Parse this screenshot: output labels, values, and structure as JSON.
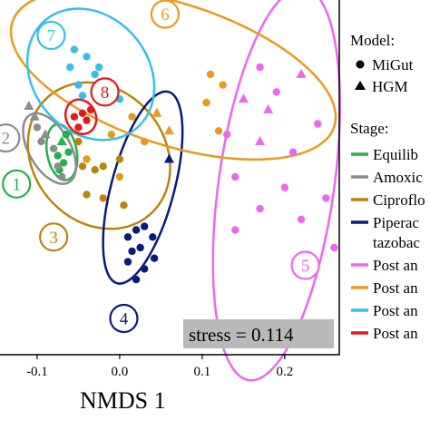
{
  "chart_data": {
    "type": "scatter",
    "xlabel": "NMDS 1",
    "ylabel": "",
    "x_ticks": [
      "-0.1",
      "0.0",
      "0.1",
      "0.2"
    ],
    "x_tick_values": [
      -0.1,
      0.0,
      0.1,
      0.2
    ],
    "xlim": [
      -0.145,
      0.265
    ],
    "ylim": [
      0,
      1
    ],
    "stress_label": "stress = 0.114",
    "legend": {
      "model_title": "Model:",
      "models": [
        {
          "marker": "circle",
          "label": "MiGut"
        },
        {
          "marker": "triangle",
          "label": "HGM"
        }
      ],
      "stage_title": "Stage:",
      "stages": [
        {
          "label": "Equilib",
          "color": "#22b14c"
        },
        {
          "label": "Amoxic",
          "color": "#8c8c8c"
        },
        {
          "label": "Ciproflo",
          "color": "#b8860b"
        },
        {
          "label": "Piperac",
          "label2": "tazobac",
          "color": "#0a1a7a"
        },
        {
          "label": "Post an",
          "color": "#ee66ee"
        },
        {
          "label": "Post an",
          "color": "#e89a1e"
        },
        {
          "label": "Post an",
          "color": "#38bfe8"
        },
        {
          "label": "Post an",
          "color": "#e31a1c"
        }
      ]
    },
    "ellipses": [
      {
        "id": "1",
        "color": "#22b14c",
        "center": [
          -0.07,
          0.57
        ],
        "rx": 0.018,
        "ry": 0.08,
        "angle": -10,
        "label_pos": [
          -0.125,
          0.48
        ]
      },
      {
        "id": "2",
        "color": "#8c8c8c",
        "center": [
          -0.085,
          0.58
        ],
        "rx": 0.025,
        "ry": 0.11,
        "angle": -30,
        "label_pos": [
          -0.138,
          0.61
        ]
      },
      {
        "id": "3",
        "color": "#b8860b",
        "center": [
          -0.025,
          0.56
        ],
        "rx": 0.08,
        "ry": 0.22,
        "angle": -40,
        "label_pos": [
          -0.08,
          0.33
        ]
      },
      {
        "id": "4",
        "color": "#0a1a7a",
        "center": [
          0.028,
          0.47
        ],
        "rx": 0.038,
        "ry": 0.28,
        "angle": 15,
        "label_pos": [
          0.005,
          0.1
        ]
      },
      {
        "id": "5",
        "color": "#ee66ee",
        "center": [
          0.19,
          0.48
        ],
        "rx": 0.07,
        "ry": 0.56,
        "angle": 8,
        "label_pos": [
          0.225,
          0.25
        ]
      },
      {
        "id": "6",
        "color": "#e89a1e",
        "center": [
          0.065,
          0.79
        ],
        "rx": 0.205,
        "ry": 0.2,
        "angle": 18,
        "label_pos": [
          0.055,
          0.96
        ]
      },
      {
        "id": "7",
        "color": "#38bfe8",
        "center": [
          -0.035,
          0.79
        ],
        "rx": 0.07,
        "ry": 0.2,
        "angle": -40,
        "label_pos": [
          -0.083,
          0.9
        ]
      },
      {
        "id": "8",
        "color": "#e31a1c",
        "center": [
          -0.047,
          0.67
        ],
        "rx": 0.018,
        "ry": 0.05,
        "angle": -25,
        "label_pos": [
          -0.018,
          0.74
        ]
      }
    ],
    "series": [
      {
        "name": "Equilib",
        "color": "#22b14c",
        "points": [
          {
            "x": -0.075,
            "y": 0.56,
            "m": "circle"
          },
          {
            "x": -0.068,
            "y": 0.54,
            "m": "circle"
          },
          {
            "x": -0.07,
            "y": 0.6,
            "m": "triangle"
          },
          {
            "x": -0.062,
            "y": 0.57,
            "m": "circle"
          },
          {
            "x": -0.073,
            "y": 0.52,
            "m": "circle"
          },
          {
            "x": -0.065,
            "y": 0.62,
            "m": "circle"
          }
        ]
      },
      {
        "name": "Amoxic",
        "color": "#8c8c8c",
        "points": [
          {
            "x": -0.11,
            "y": 0.7,
            "m": "triangle"
          },
          {
            "x": -0.1,
            "y": 0.64,
            "m": "circle"
          },
          {
            "x": -0.095,
            "y": 0.6,
            "m": "circle"
          },
          {
            "x": -0.09,
            "y": 0.62,
            "m": "triangle"
          },
          {
            "x": -0.08,
            "y": 0.58,
            "m": "circle"
          },
          {
            "x": -0.075,
            "y": 0.53,
            "m": "circle"
          },
          {
            "x": -0.07,
            "y": 0.5,
            "m": "circle"
          },
          {
            "x": -0.103,
            "y": 0.67,
            "m": "triangle"
          }
        ]
      },
      {
        "name": "Ciproflo",
        "color": "#b8860b",
        "points": [
          {
            "x": -0.045,
            "y": 0.53,
            "m": "circle"
          },
          {
            "x": -0.03,
            "y": 0.52,
            "m": "circle"
          },
          {
            "x": -0.02,
            "y": 0.53,
            "m": "circle"
          },
          {
            "x": 0.0,
            "y": 0.55,
            "m": "circle"
          },
          {
            "x": -0.05,
            "y": 0.6,
            "m": "circle"
          },
          {
            "x": -0.04,
            "y": 0.45,
            "m": "circle"
          },
          {
            "x": -0.02,
            "y": 0.44,
            "m": "circle"
          },
          {
            "x": 0.005,
            "y": 0.42,
            "m": "circle"
          }
        ]
      },
      {
        "name": "Piperac tazobac",
        "color": "#0a1a7a",
        "points": [
          {
            "x": 0.01,
            "y": 0.33,
            "m": "circle"
          },
          {
            "x": 0.02,
            "y": 0.35,
            "m": "circle"
          },
          {
            "x": 0.03,
            "y": 0.36,
            "m": "circle"
          },
          {
            "x": 0.015,
            "y": 0.29,
            "m": "circle"
          },
          {
            "x": 0.025,
            "y": 0.3,
            "m": "circle"
          },
          {
            "x": 0.04,
            "y": 0.33,
            "m": "circle"
          },
          {
            "x": 0.01,
            "y": 0.26,
            "m": "circle"
          },
          {
            "x": 0.03,
            "y": 0.24,
            "m": "circle"
          },
          {
            "x": 0.02,
            "y": 0.21,
            "m": "circle"
          },
          {
            "x": 0.042,
            "y": 0.27,
            "m": "circle"
          },
          {
            "x": 0.06,
            "y": 0.55,
            "m": "triangle"
          }
        ]
      },
      {
        "name": "Post an 5",
        "color": "#ee66ee",
        "points": [
          {
            "x": 0.17,
            "y": 0.81,
            "m": "circle"
          },
          {
            "x": 0.22,
            "y": 0.79,
            "m": "triangle"
          },
          {
            "x": 0.19,
            "y": 0.74,
            "m": "circle"
          },
          {
            "x": 0.15,
            "y": 0.72,
            "m": "triangle"
          },
          {
            "x": 0.18,
            "y": 0.69,
            "m": "triangle"
          },
          {
            "x": 0.24,
            "y": 0.65,
            "m": "circle"
          },
          {
            "x": 0.13,
            "y": 0.62,
            "m": "circle"
          },
          {
            "x": 0.17,
            "y": 0.6,
            "m": "triangle"
          },
          {
            "x": 0.21,
            "y": 0.57,
            "m": "circle"
          },
          {
            "x": 0.14,
            "y": 0.5,
            "m": "circle"
          },
          {
            "x": 0.2,
            "y": 0.47,
            "m": "circle"
          },
          {
            "x": 0.25,
            "y": 0.44,
            "m": "circle"
          },
          {
            "x": 0.17,
            "y": 0.41,
            "m": "circle"
          },
          {
            "x": 0.22,
            "y": 0.38,
            "m": "circle"
          },
          {
            "x": 0.14,
            "y": 0.35,
            "m": "circle"
          },
          {
            "x": 0.26,
            "y": 0.3,
            "m": "circle"
          }
        ]
      },
      {
        "name": "Post an 6",
        "color": "#e89a1e",
        "points": [
          {
            "x": 0.11,
            "y": 0.79,
            "m": "circle"
          },
          {
            "x": 0.125,
            "y": 0.76,
            "m": "circle"
          },
          {
            "x": 0.105,
            "y": 0.71,
            "m": "circle"
          },
          {
            "x": 0.12,
            "y": 0.63,
            "m": "circle"
          },
          {
            "x": 0.045,
            "y": 0.68,
            "m": "triangle"
          },
          {
            "x": 0.06,
            "y": 0.63,
            "m": "triangle"
          },
          {
            "x": 0.015,
            "y": 0.67,
            "m": "circle"
          },
          {
            "x": -0.04,
            "y": 0.55,
            "m": "circle"
          },
          {
            "x": 0.0,
            "y": 0.5,
            "m": "circle"
          },
          {
            "x": 0.03,
            "y": 0.6,
            "m": "circle"
          },
          {
            "x": -0.01,
            "y": 0.62,
            "m": "circle"
          }
        ]
      },
      {
        "name": "Post an 7",
        "color": "#38bfe8",
        "points": [
          {
            "x": -0.055,
            "y": 0.86,
            "m": "circle"
          },
          {
            "x": -0.04,
            "y": 0.84,
            "m": "circle"
          },
          {
            "x": -0.06,
            "y": 0.81,
            "m": "circle"
          },
          {
            "x": -0.03,
            "y": 0.79,
            "m": "circle"
          },
          {
            "x": -0.05,
            "y": 0.76,
            "m": "circle"
          },
          {
            "x": -0.02,
            "y": 0.74,
            "m": "triangle"
          },
          {
            "x": -0.045,
            "y": 0.73,
            "m": "circle"
          },
          {
            "x": 0.0,
            "y": 0.72,
            "m": "circle"
          },
          {
            "x": -0.025,
            "y": 0.81,
            "m": "circle"
          }
        ]
      },
      {
        "name": "Post an 8",
        "color": "#e31a1c",
        "points": [
          {
            "x": -0.055,
            "y": 0.67,
            "m": "circle"
          },
          {
            "x": -0.045,
            "y": 0.68,
            "m": "circle"
          },
          {
            "x": -0.04,
            "y": 0.66,
            "m": "circle"
          },
          {
            "x": -0.05,
            "y": 0.64,
            "m": "circle"
          },
          {
            "x": -0.035,
            "y": 0.69,
            "m": "circle"
          }
        ]
      }
    ]
  }
}
